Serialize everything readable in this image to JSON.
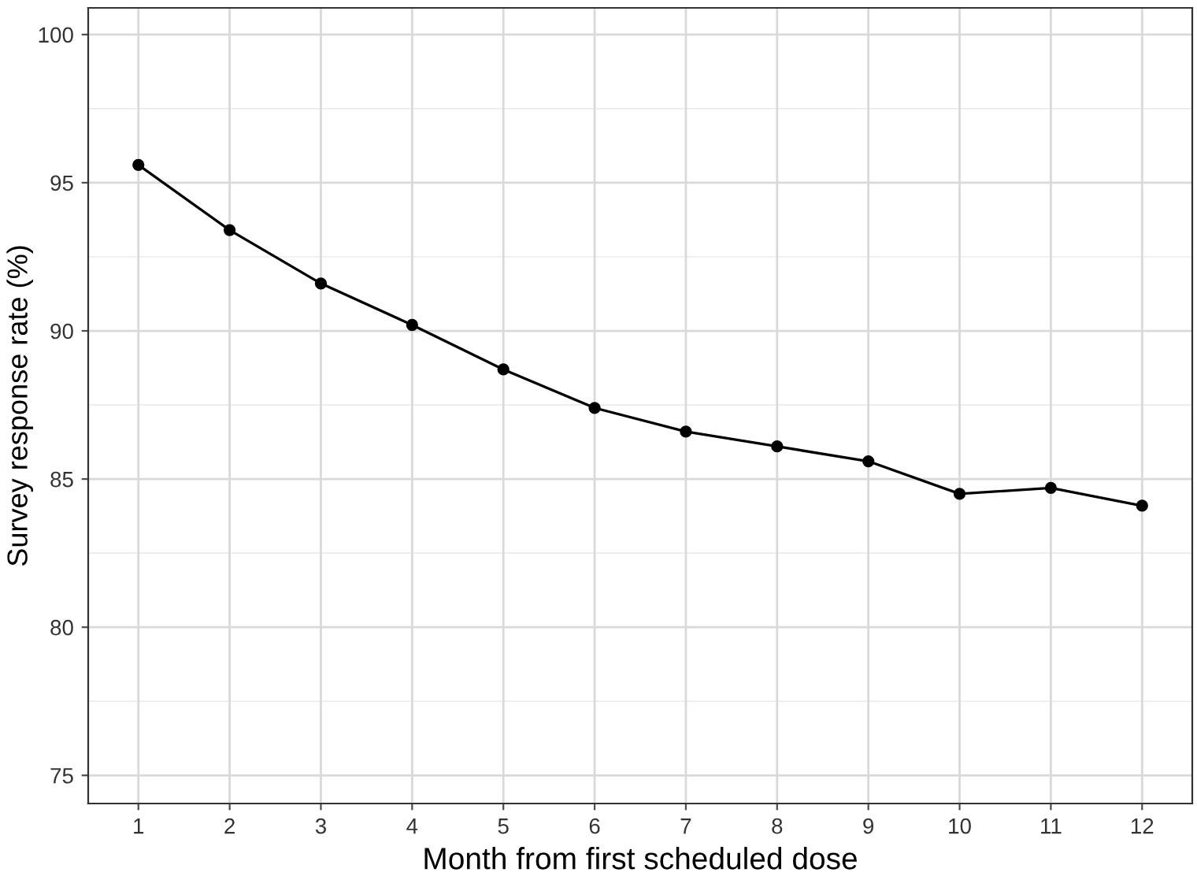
{
  "chart_data": {
    "type": "line",
    "xlabel": "Month from first scheduled dose",
    "ylabel": "Survey response rate (%)",
    "x": [
      1,
      2,
      3,
      4,
      5,
      6,
      7,
      8,
      9,
      10,
      11,
      12
    ],
    "series": [
      {
        "color": "#000000",
        "values": [
          95.6,
          93.4,
          91.6,
          90.2,
          88.7,
          87.4,
          86.6,
          86.1,
          85.6,
          84.5,
          84.7,
          84.1
        ]
      }
    ],
    "xlim": [
      0.45,
      12.55
    ],
    "xticks": [
      1,
      2,
      3,
      4,
      5,
      6,
      7,
      8,
      9,
      10,
      11,
      12
    ],
    "ylim": [
      74.05,
      100.9
    ],
    "yticks": [
      75,
      80,
      85,
      90,
      95,
      100
    ],
    "grid": true,
    "marker": "circle",
    "line_style": "solid",
    "legend": false
  }
}
